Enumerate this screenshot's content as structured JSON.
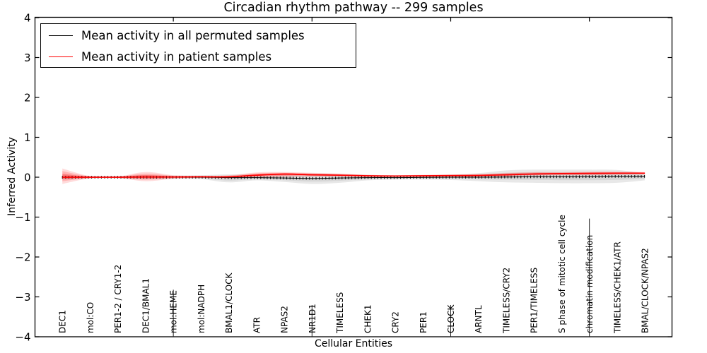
{
  "chart_data": {
    "type": "line",
    "title": "Circadian rhythm pathway -- 299 samples",
    "xlabel": "Cellular Entities",
    "ylabel": "Inferred Activity",
    "ylim": [
      -4,
      4
    ],
    "yticks": [
      4,
      3,
      2,
      1,
      0,
      -1,
      -2,
      -3,
      -4
    ],
    "grid": false,
    "legend_position": "upper left",
    "categories": [
      "DEC1",
      "mol:CO",
      "PER1-2 / CRY1-2",
      "DEC1/BMAL1",
      "mol:HEME",
      "mol:NADPH",
      "BMAL1/CLOCK",
      "ATR",
      "NPAS2",
      "NR1D1",
      "TIMELESS",
      "CHEK1",
      "CRY2",
      "PER1",
      "CLOCK",
      "ARNTL",
      "TIMELESS/CRY2",
      "PER1/TIMELESS",
      "S phase of mitotic cell cycle",
      "chromatin modification",
      "TIMELESS/CHEK1/ATR",
      "BMAL/CLOCK/NPAS2"
    ],
    "series": [
      {
        "name": "Mean activity in all permuted samples",
        "color": "#000000",
        "line_style": "solid with small vertical dash markers",
        "values": [
          0,
          0,
          0,
          0,
          0,
          0,
          -0.01,
          -0.01,
          -0.02,
          -0.03,
          -0.02,
          -0.01,
          -0.01,
          -0.005,
          0,
          0,
          0.005,
          0.01,
          0.01,
          0.015,
          0.02,
          0.02
        ],
        "band_upper": [
          0.05,
          0.03,
          0.03,
          0.05,
          0.04,
          0.05,
          0.07,
          0.06,
          0.08,
          0.09,
          0.08,
          0.06,
          0.05,
          0.05,
          0.06,
          0.1,
          0.17,
          0.19,
          0.19,
          0.19,
          0.18,
          0.1
        ],
        "band_lower": [
          -0.06,
          -0.03,
          -0.03,
          -0.05,
          -0.04,
          -0.05,
          -0.13,
          -0.08,
          -0.12,
          -0.17,
          -0.14,
          -0.08,
          -0.06,
          -0.06,
          -0.07,
          -0.1,
          -0.13,
          -0.14,
          -0.15,
          -0.15,
          -0.14,
          -0.08
        ],
        "band_color": "#bbbbbb"
      },
      {
        "name": "Mean activity in patient samples",
        "color": "#ff0000",
        "line_style": "solid",
        "values": [
          0,
          0,
          0,
          0.005,
          0.005,
          0.01,
          0.01,
          0.05,
          0.08,
          0.06,
          0.05,
          0.035,
          0.03,
          0.035,
          0.04,
          0.045,
          0.06,
          0.08,
          0.09,
          0.095,
          0.1,
          0.1
        ],
        "band_upper": [
          0.22,
          0.03,
          0.02,
          0.13,
          0.05,
          0.03,
          0.05,
          0.12,
          0.13,
          0.11,
          0.09,
          0.06,
          0.05,
          0.06,
          0.07,
          0.08,
          0.11,
          0.13,
          0.13,
          0.14,
          0.14,
          0.13
        ],
        "band_lower": [
          -0.17,
          -0.03,
          -0.02,
          -0.1,
          -0.04,
          -0.02,
          -0.03,
          -0.01,
          0.01,
          0.02,
          0.02,
          0.01,
          0.01,
          0.01,
          0.01,
          0.01,
          0.02,
          0.04,
          0.05,
          0.05,
          0.06,
          0.07
        ],
        "band_color": "#ff6666"
      }
    ]
  }
}
